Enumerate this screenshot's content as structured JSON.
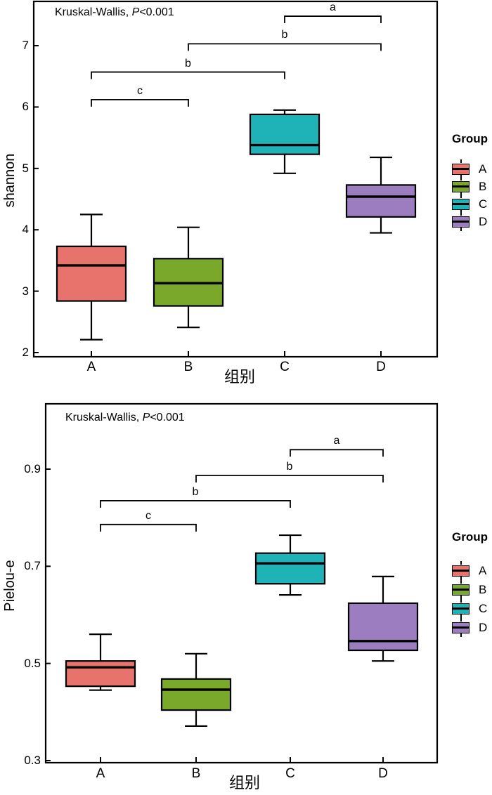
{
  "figure": {
    "background": "#ffffff"
  },
  "chart_data": [
    {
      "type": "boxplot",
      "id": "shannon",
      "stats_annotation": {
        "prefix": "Kruskal-Wallis, ",
        "p_symbol": "P",
        "rest": "<0.001"
      },
      "ylabel": "shannon",
      "xlabel": "组别",
      "ylim": [
        2,
        7.72
      ],
      "y_ticks": [
        2,
        3,
        4,
        5,
        6,
        7
      ],
      "grid": false,
      "legend_position": "right",
      "categories": [
        "A",
        "B",
        "C",
        "D"
      ],
      "series": [
        {
          "name": "A",
          "color": "#E8736C",
          "whisker_low": 2.21,
          "q1": 2.84,
          "median": 3.42,
          "q3": 3.73,
          "whisker_high": 4.25
        },
        {
          "name": "B",
          "color": "#7AA82A",
          "whisker_low": 2.41,
          "q1": 2.76,
          "median": 3.13,
          "q3": 3.53,
          "whisker_high": 4.04
        },
        {
          "name": "C",
          "color": "#1FB3B8",
          "whisker_low": 4.92,
          "q1": 5.23,
          "median": 5.38,
          "q3": 5.88,
          "whisker_high": 5.95
        },
        {
          "name": "D",
          "color": "#9C7EC0",
          "whisker_low": 3.95,
          "q1": 4.21,
          "median": 4.54,
          "q3": 4.73,
          "whisker_high": 5.18
        }
      ],
      "significance_brackets": [
        {
          "label": "a",
          "from": "C",
          "to": "D",
          "height": 7.48
        },
        {
          "label": "b",
          "from": "B",
          "to": "D",
          "height": 7.03
        },
        {
          "label": "b",
          "from": "A",
          "to": "C",
          "height": 6.57
        },
        {
          "label": "c",
          "from": "A",
          "to": "B",
          "height": 6.12
        }
      ],
      "legend": {
        "title": "Group",
        "items": [
          {
            "label": "A",
            "color": "#E8736C"
          },
          {
            "label": "B",
            "color": "#7AA82A"
          },
          {
            "label": "C",
            "color": "#1FB3B8"
          },
          {
            "label": "D",
            "color": "#9C7EC0"
          }
        ]
      }
    },
    {
      "type": "boxplot",
      "id": "pielou-e",
      "stats_annotation": {
        "prefix": "Kruskal-Wallis, ",
        "p_symbol": "P",
        "rest": "<0.001"
      },
      "ylabel": "Pielou-e",
      "xlabel": "组别",
      "ylim": [
        0.3,
        1.03
      ],
      "y_ticks": [
        0.3,
        0.5,
        0.7,
        0.9
      ],
      "grid": false,
      "legend_position": "right",
      "categories": [
        "A",
        "B",
        "C",
        "D"
      ],
      "series": [
        {
          "name": "A",
          "color": "#E8736C",
          "whisker_low": 0.445,
          "q1": 0.453,
          "median": 0.492,
          "q3": 0.505,
          "whisker_high": 0.56
        },
        {
          "name": "B",
          "color": "#7AA82A",
          "whisker_low": 0.371,
          "q1": 0.404,
          "median": 0.446,
          "q3": 0.468,
          "whisker_high": 0.52
        },
        {
          "name": "C",
          "color": "#1FB3B8",
          "whisker_low": 0.641,
          "q1": 0.664,
          "median": 0.706,
          "q3": 0.727,
          "whisker_high": 0.764
        },
        {
          "name": "D",
          "color": "#9C7EC0",
          "whisker_low": 0.505,
          "q1": 0.527,
          "median": 0.546,
          "q3": 0.624,
          "whisker_high": 0.679
        }
      ],
      "significance_brackets": [
        {
          "label": "a",
          "from": "C",
          "to": "D",
          "height": 0.94
        },
        {
          "label": "b",
          "from": "B",
          "to": "D",
          "height": 0.887
        },
        {
          "label": "b",
          "from": "A",
          "to": "C",
          "height": 0.835
        },
        {
          "label": "c",
          "from": "A",
          "to": "B",
          "height": 0.786
        }
      ],
      "legend": {
        "title": "Group",
        "items": [
          {
            "label": "A",
            "color": "#E8736C"
          },
          {
            "label": "B",
            "color": "#7AA82A"
          },
          {
            "label": "C",
            "color": "#1FB3B8"
          },
          {
            "label": "D",
            "color": "#9C7EC0"
          }
        ]
      }
    }
  ]
}
